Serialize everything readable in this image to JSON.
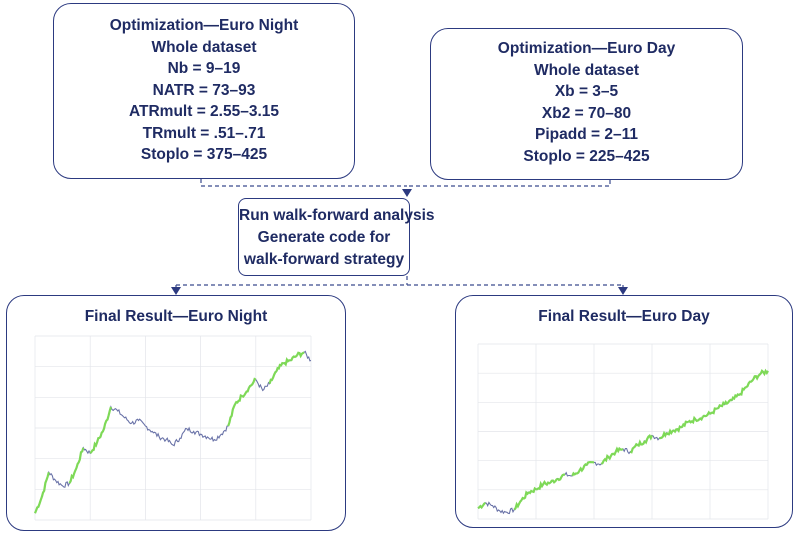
{
  "optimization_night": {
    "title": "Optimization—Euro Night",
    "subtitle": "Whole dataset",
    "params": [
      "Nb = 9–19",
      "NATR = 73–93",
      "ATRmult = 2.55–3.15",
      "TRmult = .51–.71",
      "Stoplo = 375–425"
    ]
  },
  "optimization_day": {
    "title": "Optimization—Euro Day",
    "subtitle": "Whole dataset",
    "params": [
      "Xb = 3–5",
      "Xb2 = 70–80",
      "Pipadd = 2–11",
      "Stoplo = 225–425"
    ]
  },
  "walk_forward": {
    "lines": [
      "Run walk-forward analysis",
      "Generate code for",
      "walk-forward strategy"
    ]
  },
  "result_night": {
    "title": "Final Result—Euro Night",
    "chart_data": {
      "type": "line",
      "x": [
        0,
        1,
        2,
        3,
        4,
        5,
        6,
        7,
        8,
        9,
        10,
        11,
        12,
        13,
        14,
        15,
        16,
        17,
        18,
        19,
        20,
        21,
        22,
        23,
        24,
        25,
        26,
        27,
        28,
        29,
        30,
        31,
        32,
        33,
        34,
        35,
        36,
        37,
        38,
        39,
        40
      ],
      "values": [
        0,
        12,
        30,
        24,
        20,
        22,
        33,
        48,
        44,
        52,
        62,
        78,
        75,
        70,
        66,
        68,
        64,
        60,
        56,
        54,
        50,
        55,
        62,
        60,
        58,
        56,
        54,
        58,
        64,
        80,
        86,
        92,
        98,
        90,
        95,
        104,
        110,
        112,
        116,
        118,
        112
      ],
      "ylim": [
        -5,
        130
      ],
      "series_color": "#6a73a8",
      "highlight_color": "#7ed957"
    }
  },
  "result_day": {
    "title": "Final Result—Euro Day",
    "chart_data": {
      "type": "line",
      "x": [
        0,
        1,
        2,
        3,
        4,
        5,
        6,
        7,
        8,
        9,
        10,
        11,
        12,
        13,
        14,
        15,
        16,
        17,
        18,
        19,
        20,
        21,
        22,
        23,
        24,
        25,
        26,
        27,
        28,
        29,
        30,
        31,
        32,
        33,
        34,
        35,
        36,
        37,
        38,
        39,
        40
      ],
      "values": [
        8,
        12,
        10,
        6,
        5,
        7,
        14,
        20,
        22,
        26,
        27,
        30,
        33,
        32,
        36,
        40,
        42,
        41,
        46,
        50,
        52,
        50,
        55,
        58,
        62,
        60,
        64,
        66,
        68,
        72,
        74,
        76,
        78,
        82,
        85,
        88,
        92,
        98,
        104,
        108,
        110
      ],
      "ylim": [
        0,
        130
      ],
      "series_color": "#6a73a8",
      "highlight_color": "#7ed957"
    }
  },
  "colors": {
    "text": "#1f2b63",
    "border": "#2c3a80",
    "connector": "#3a4a8e",
    "grid": "#e3e5ea"
  }
}
